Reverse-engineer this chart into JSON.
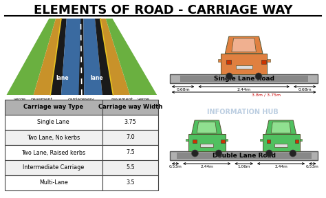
{
  "title": "ELEMENTS OF ROAD - CARRIAGE WAY",
  "title_fontsize": 13,
  "bg_color": "#ffffff",
  "table_headers": [
    "Carriage way Type",
    "Carriage way Width"
  ],
  "table_rows": [
    [
      "Single Lane",
      "3.75"
    ],
    [
      "Two Lane, No kerbs",
      "7.0"
    ],
    [
      "Two Lane, Raised kerbs",
      "7.5"
    ],
    [
      "Intermediate Carriage",
      "5.5"
    ],
    [
      "Multi-Lane",
      "3.5"
    ]
  ],
  "road_labels": [
    "verge",
    "pavement",
    "carriageway",
    "pavement",
    "verge"
  ],
  "single_lane_label": "Single Lane Road",
  "single_lane_dims": [
    "0.68m",
    "2.44m",
    "0.68m"
  ],
  "single_lane_total": "3.8m / 3.75m",
  "double_lane_label": "Double Lane Road",
  "double_lane_dims": [
    "0.53m",
    "2.44m",
    "1.06m",
    "2.44m",
    "0.53m"
  ],
  "road_bg": "#c8c8c8",
  "road_surface": "#888888",
  "verge_color": "#6ab040",
  "pavement_color": "#c8922a",
  "carriageway_color": "#3a6aa0",
  "road_dark": "#1a1a1a",
  "car_single_color": "#e08040",
  "car_single_light": "#f0b090",
  "car_double_color": "#50c060",
  "car_double_light": "#90e090",
  "table_header_bg": "#b0b0b0",
  "table_row_bg1": "#ffffff",
  "table_row_bg2": "#f0f0f0",
  "table_border": "#444444",
  "watermark_color": "#90aece",
  "yellow_line": "#e8c420",
  "arrow_color": "#000000",
  "total_arrow_color": "#cc0000"
}
